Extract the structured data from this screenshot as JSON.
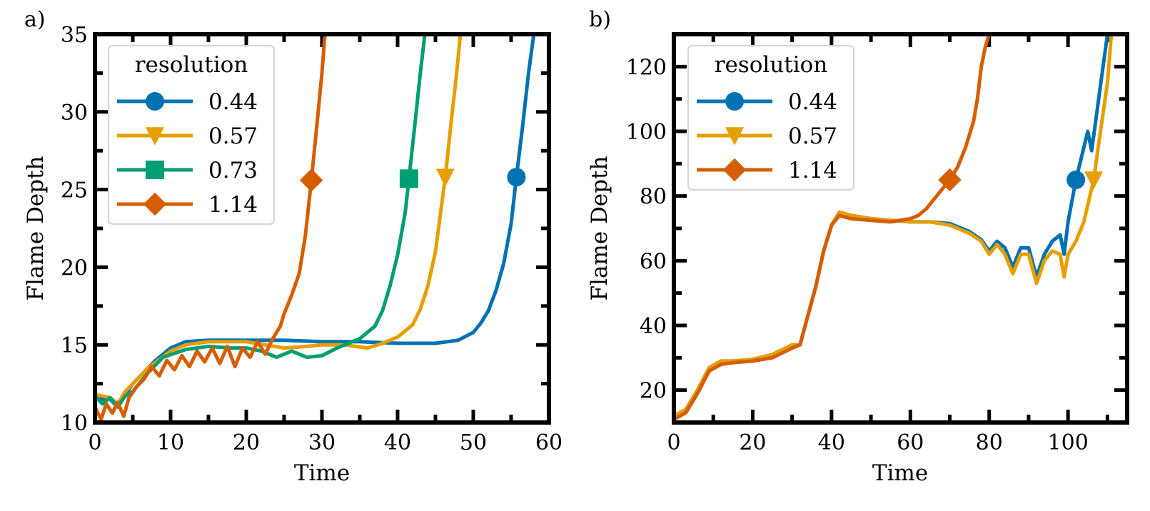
{
  "chart_data": [
    {
      "type": "line",
      "panel_label": "a)",
      "xlabel": "Time",
      "ylabel": "Flame Depth",
      "xlim": [
        0,
        60
      ],
      "ylim": [
        10,
        35
      ],
      "xticks": [
        0,
        10,
        20,
        30,
        40,
        50,
        60
      ],
      "yticks": [
        10,
        15,
        20,
        25,
        30,
        35
      ],
      "grid": false,
      "legend": {
        "title": "resolution",
        "placement": "top-left"
      },
      "series": [
        {
          "name": "0.44",
          "color": "#0072b2",
          "marker": "circle",
          "marker_point": [
            55.7,
            25.8
          ],
          "points": [
            [
              0,
              11.5
            ],
            [
              2,
              11.5
            ],
            [
              3,
              11
            ],
            [
              4,
              11.8
            ],
            [
              5,
              12.5
            ],
            [
              6,
              13
            ],
            [
              8,
              14
            ],
            [
              10,
              14.8
            ],
            [
              12,
              15.2
            ],
            [
              15,
              15.3
            ],
            [
              20,
              15.3
            ],
            [
              25,
              15.3
            ],
            [
              30,
              15.2
            ],
            [
              35,
              15.2
            ],
            [
              40,
              15.1
            ],
            [
              45,
              15.1
            ],
            [
              48,
              15.3
            ],
            [
              50,
              15.8
            ],
            [
              51,
              16.4
            ],
            [
              52,
              17.2
            ],
            [
              53,
              18.5
            ],
            [
              54,
              20.2
            ],
            [
              55,
              22.8
            ],
            [
              55.7,
              25.8
            ],
            [
              56.5,
              29
            ],
            [
              57.3,
              32.5
            ],
            [
              58,
              35
            ]
          ]
        },
        {
          "name": "0.57",
          "color": "#e69f00",
          "marker": "triangle-down",
          "marker_point": [
            46.3,
            25.8
          ],
          "points": [
            [
              0,
              11.8
            ],
            [
              2,
              11.6
            ],
            [
              3,
              11.2
            ],
            [
              4,
              12
            ],
            [
              5,
              12.5
            ],
            [
              7,
              13.5
            ],
            [
              10,
              14.6
            ],
            [
              12,
              15
            ],
            [
              15,
              15.2
            ],
            [
              20,
              15.2
            ],
            [
              25,
              14.8
            ],
            [
              28,
              14.9
            ],
            [
              30,
              15
            ],
            [
              33,
              15
            ],
            [
              36,
              14.8
            ],
            [
              38,
              15.1
            ],
            [
              40,
              15.5
            ],
            [
              42,
              16.3
            ],
            [
              43,
              17.3
            ],
            [
              44,
              18.8
            ],
            [
              45,
              21
            ],
            [
              46.3,
              25.8
            ],
            [
              47,
              29
            ],
            [
              47.8,
              32.5
            ],
            [
              48.3,
              35
            ]
          ]
        },
        {
          "name": "0.73",
          "color": "#009e73",
          "marker": "square",
          "marker_point": [
            41.5,
            25.7
          ],
          "points": [
            [
              0,
              11.7
            ],
            [
              1,
              11.2
            ],
            [
              2,
              11.6
            ],
            [
              3,
              11
            ],
            [
              4,
              11.7
            ],
            [
              5,
              12
            ],
            [
              7,
              13.2
            ],
            [
              9,
              14.2
            ],
            [
              12,
              14.7
            ],
            [
              15,
              14.9
            ],
            [
              18,
              14.8
            ],
            [
              20,
              14.8
            ],
            [
              22,
              14.6
            ],
            [
              24,
              14.2
            ],
            [
              26,
              14.6
            ],
            [
              28,
              14.2
            ],
            [
              30,
              14.3
            ],
            [
              32,
              14.8
            ],
            [
              35,
              15.4
            ],
            [
              37,
              16.2
            ],
            [
              38,
              17.2
            ],
            [
              39,
              18.8
            ],
            [
              40,
              20.8
            ],
            [
              41,
              23.5
            ],
            [
              41.5,
              25.7
            ],
            [
              42.2,
              28.8
            ],
            [
              43,
              32.5
            ],
            [
              43.6,
              35
            ]
          ]
        },
        {
          "name": "1.14",
          "color": "#d55e00",
          "marker": "diamond",
          "marker_point": [
            28.6,
            25.6
          ],
          "points": [
            [
              0,
              11
            ],
            [
              0.8,
              10.2
            ],
            [
              1.5,
              11.2
            ],
            [
              2.3,
              10.6
            ],
            [
              3,
              11.3
            ],
            [
              3.8,
              10.4
            ],
            [
              4.5,
              11.6
            ],
            [
              5.5,
              12.3
            ],
            [
              6.5,
              12.8
            ],
            [
              7.5,
              13.6
            ],
            [
              8.5,
              13
            ],
            [
              9.5,
              14
            ],
            [
              10.5,
              13.4
            ],
            [
              11.5,
              14.3
            ],
            [
              12.5,
              13.6
            ],
            [
              13.5,
              14.6
            ],
            [
              14.5,
              13.9
            ],
            [
              15.5,
              14.8
            ],
            [
              16.5,
              13.8
            ],
            [
              17.5,
              14.9
            ],
            [
              18.5,
              13.6
            ],
            [
              19.5,
              14.8
            ],
            [
              20.5,
              14.2
            ],
            [
              21.5,
              15.2
            ],
            [
              22.5,
              14.4
            ],
            [
              23.5,
              15.4
            ],
            [
              24.5,
              16.2
            ],
            [
              25,
              17
            ],
            [
              26,
              18.2
            ],
            [
              27,
              19.6
            ],
            [
              27.8,
              22
            ],
            [
              28.6,
              25.6
            ],
            [
              29.3,
              29
            ],
            [
              30,
              32.5
            ],
            [
              30.4,
              35
            ]
          ]
        }
      ]
    },
    {
      "type": "line",
      "panel_label": "b)",
      "xlabel": "Time",
      "ylabel": "Flame Depth",
      "xlim": [
        0,
        115
      ],
      "ylim": [
        10,
        130
      ],
      "xticks": [
        0,
        20,
        40,
        60,
        80,
        100
      ],
      "yticks": [
        20,
        40,
        60,
        80,
        100,
        120
      ],
      "grid": false,
      "legend": {
        "title": "resolution",
        "placement": "top-left"
      },
      "series": [
        {
          "name": "0.44",
          "color": "#0072b2",
          "marker": "circle",
          "marker_point": [
            102,
            85
          ],
          "points": [
            [
              0,
              12
            ],
            [
              3,
              14
            ],
            [
              6,
              20
            ],
            [
              9,
              27
            ],
            [
              12,
              29
            ],
            [
              15,
              29
            ],
            [
              20,
              29.5
            ],
            [
              25,
              31
            ],
            [
              30,
              34
            ],
            [
              32,
              34
            ],
            [
              34,
              43
            ],
            [
              36,
              52
            ],
            [
              38,
              63
            ],
            [
              40,
              71
            ],
            [
              42,
              75
            ],
            [
              45,
              74
            ],
            [
              50,
              73
            ],
            [
              55,
              72.5
            ],
            [
              60,
              72
            ],
            [
              65,
              72
            ],
            [
              70,
              71.5
            ],
            [
              75,
              69
            ],
            [
              78,
              66.5
            ],
            [
              80,
              63
            ],
            [
              82,
              66
            ],
            [
              84,
              64
            ],
            [
              86,
              58
            ],
            [
              88,
              64
            ],
            [
              90,
              64
            ],
            [
              92,
              55
            ],
            [
              94,
              62
            ],
            [
              96,
              66
            ],
            [
              98,
              68
            ],
            [
              99,
              62
            ],
            [
              100,
              72
            ],
            [
              102,
              85
            ],
            [
              104,
              95
            ],
            [
              105,
              100
            ],
            [
              106,
              94
            ],
            [
              108,
              112
            ],
            [
              110,
              130
            ]
          ]
        },
        {
          "name": "0.57",
          "color": "#e69f00",
          "marker": "triangle-down",
          "marker_point": [
            106.5,
            85
          ],
          "points": [
            [
              0,
              12
            ],
            [
              3,
              14
            ],
            [
              6,
              20
            ],
            [
              9,
              27
            ],
            [
              12,
              29
            ],
            [
              15,
              29
            ],
            [
              20,
              29.5
            ],
            [
              25,
              31
            ],
            [
              30,
              34
            ],
            [
              32,
              34
            ],
            [
              34,
              43
            ],
            [
              36,
              52
            ],
            [
              38,
              63
            ],
            [
              40,
              71
            ],
            [
              42,
              75
            ],
            [
              45,
              74
            ],
            [
              50,
              73
            ],
            [
              55,
              72.5
            ],
            [
              60,
              72
            ],
            [
              65,
              72
            ],
            [
              70,
              71
            ],
            [
              75,
              68.5
            ],
            [
              78,
              66
            ],
            [
              80,
              62
            ],
            [
              82,
              65
            ],
            [
              84,
              62
            ],
            [
              86,
              56
            ],
            [
              88,
              62
            ],
            [
              90,
              62
            ],
            [
              92,
              53
            ],
            [
              94,
              60
            ],
            [
              96,
              63
            ],
            [
              98,
              62
            ],
            [
              99,
              55
            ],
            [
              100,
              62
            ],
            [
              102,
              66
            ],
            [
              104,
              72
            ],
            [
              106.5,
              85
            ],
            [
              108,
              98
            ],
            [
              110,
              115
            ],
            [
              111,
              130
            ]
          ]
        },
        {
          "name": "1.14",
          "color": "#d55e00",
          "marker": "diamond",
          "marker_point": [
            70,
            85
          ],
          "points": [
            [
              0,
              11
            ],
            [
              3,
              13
            ],
            [
              6,
              19
            ],
            [
              9,
              26
            ],
            [
              12,
              28
            ],
            [
              15,
              28.5
            ],
            [
              20,
              29
            ],
            [
              25,
              30
            ],
            [
              30,
              33
            ],
            [
              32,
              34
            ],
            [
              34,
              43
            ],
            [
              36,
              52
            ],
            [
              38,
              63
            ],
            [
              40,
              71
            ],
            [
              42,
              74
            ],
            [
              45,
              73
            ],
            [
              50,
              72.5
            ],
            [
              55,
              72
            ],
            [
              60,
              73
            ],
            [
              62,
              74
            ],
            [
              64,
              76
            ],
            [
              66,
              79
            ],
            [
              68,
              82
            ],
            [
              70,
              85
            ],
            [
              72,
              89
            ],
            [
              74,
              95
            ],
            [
              76,
              103
            ],
            [
              77,
              110
            ],
            [
              78,
              120
            ],
            [
              79,
              126
            ],
            [
              80,
              130
            ]
          ]
        }
      ]
    }
  ]
}
